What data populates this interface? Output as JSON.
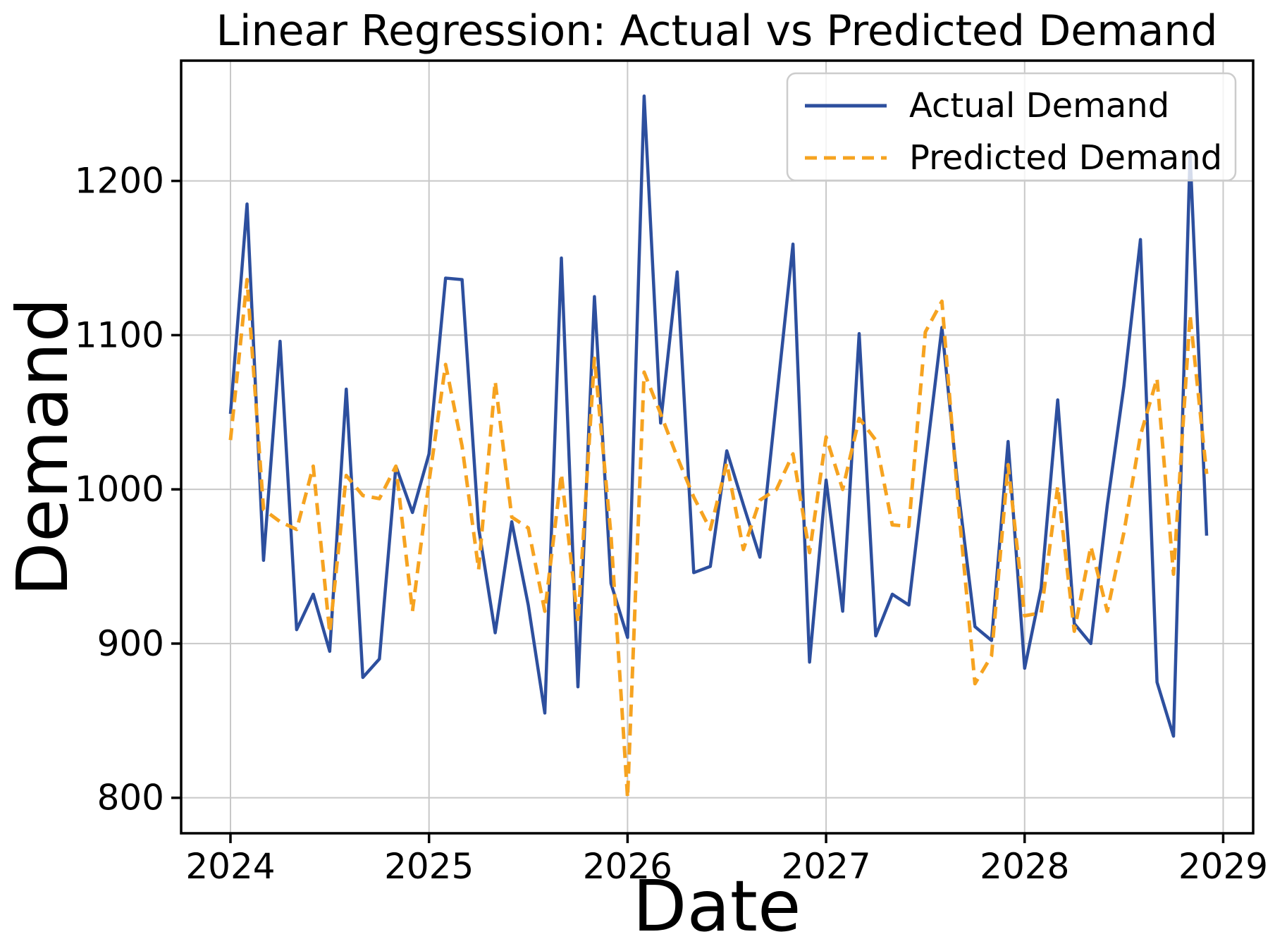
{
  "chart_data": {
    "type": "line",
    "title": "Linear Regression: Actual vs Predicted Demand",
    "xlabel": "Date",
    "ylabel": "Demand",
    "x_start": "2024-01",
    "frequency": "monthly",
    "n_points": 60,
    "x_tick_labels": [
      "2024",
      "2025",
      "2026",
      "2027",
      "2028",
      "2029"
    ],
    "x_tick_years": [
      2024,
      2025,
      2026,
      2027,
      2028,
      2029
    ],
    "y_tick_labels": [
      "800",
      "900",
      "1000",
      "1100",
      "1200"
    ],
    "y_tick_values": [
      800,
      900,
      1000,
      1100,
      1200
    ],
    "xlim_years": [
      2023.7515,
      2029.151
    ],
    "ylim": [
      777,
      1278
    ],
    "grid": true,
    "grid_color": "#c8c8c8",
    "background_color": "#ffffff",
    "spine_color": "#000000",
    "legend": {
      "position": "upper right",
      "border_color": "#cccccc",
      "background": "rgba(255,255,255,0.8)",
      "items": [
        {
          "label": "Actual Demand",
          "color": "#2d4f9e",
          "style": "solid"
        },
        {
          "label": "Predicted Demand",
          "color": "#f6a320",
          "style": "dashed"
        }
      ]
    },
    "series": [
      {
        "name": "Actual Demand",
        "color": "#2d4f9e",
        "style": "solid",
        "line_width": 4.5,
        "values": [
          1049,
          1185,
          954,
          1096,
          909,
          932,
          895,
          1065,
          878,
          890,
          1015,
          985,
          1023,
          1137,
          1136,
          975,
          907,
          979,
          925,
          855,
          1150,
          872,
          1125,
          939,
          904,
          1255,
          1043,
          1141,
          946,
          950,
          1025,
          990,
          956,
          1058,
          1159,
          888,
          1006,
          921,
          1101,
          905,
          932,
          925,
          1016,
          1105,
          998,
          911,
          902,
          1031,
          884,
          936,
          1058,
          913,
          900,
          990,
          1067,
          1162,
          875,
          840,
          1218,
          970
        ]
      },
      {
        "name": "Predicted Demand",
        "color": "#f6a320",
        "style": "dashed",
        "line_width": 5,
        "dash_pattern": [
          17,
          10
        ],
        "values": [
          1032,
          1136,
          987,
          979,
          974,
          1015,
          907,
          1009,
          996,
          994,
          1015,
          921,
          1005,
          1081,
          1028,
          948,
          1070,
          982,
          975,
          921,
          1010,
          914,
          1085,
          970,
          800,
          1076,
          1049,
          1021,
          995,
          974,
          1017,
          961,
          993,
          1000,
          1023,
          959,
          1034,
          1000,
          1046,
          1032,
          977,
          976,
          1102,
          1122,
          989,
          874,
          892,
          1016,
          918,
          920,
          1002,
          908,
          963,
          921,
          972,
          1035,
          1072,
          945,
          1113,
          1010
        ]
      }
    ]
  }
}
